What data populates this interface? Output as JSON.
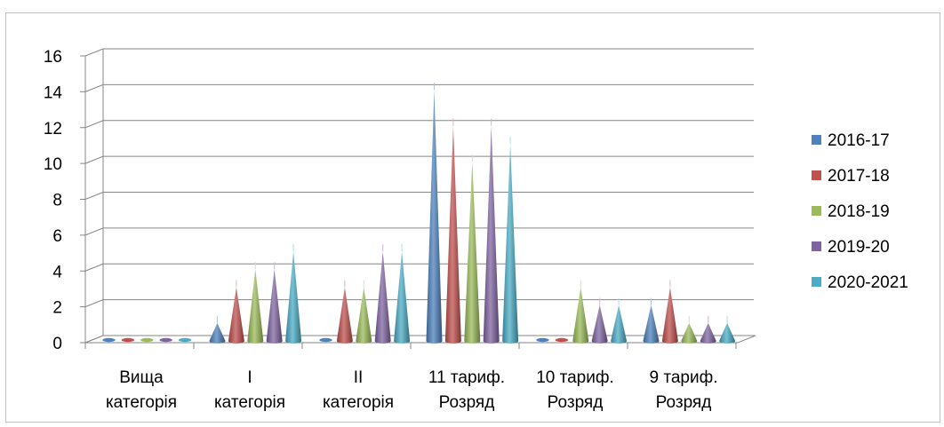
{
  "chart_data": {
    "type": "bar",
    "style": "3d-cone",
    "categories": [
      [
        "Вища",
        "категорія"
      ],
      [
        "I",
        "категорія"
      ],
      [
        "II",
        "категорія"
      ],
      [
        "11 тариф.",
        "Розряд"
      ],
      [
        "10 тариф.",
        "Розряд"
      ],
      [
        "9 тариф.",
        "Розряд"
      ]
    ],
    "series": [
      {
        "name": "2016-17",
        "color": "#4F81BD",
        "values": [
          0,
          1,
          0,
          14,
          0,
          2
        ]
      },
      {
        "name": "2017-18",
        "color": "#C0504D",
        "values": [
          0,
          3,
          3,
          12,
          0,
          3
        ]
      },
      {
        "name": "2018-19",
        "color": "#9BBB59",
        "values": [
          0,
          4,
          3,
          10,
          3,
          1
        ]
      },
      {
        "name": "2019-20",
        "color": "#8064A2",
        "values": [
          0,
          4,
          5,
          12,
          2,
          1
        ]
      },
      {
        "name": "2020-2021",
        "color": "#4BACC6",
        "values": [
          0,
          5,
          5,
          11,
          2,
          1
        ]
      }
    ],
    "ylim": [
      0,
      16
    ],
    "yticks": [
      "0",
      "2",
      "4",
      "6",
      "8",
      "10",
      "12",
      "14",
      "16"
    ],
    "grid": true,
    "legend": "right"
  }
}
